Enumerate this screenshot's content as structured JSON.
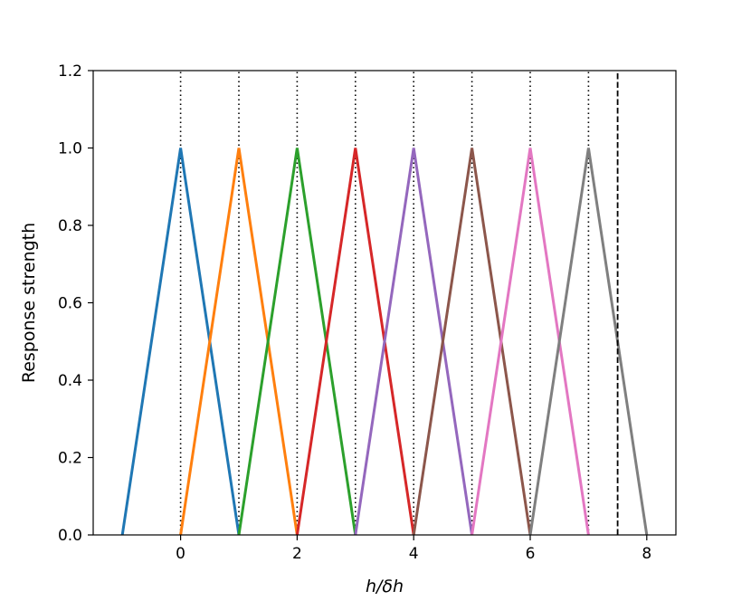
{
  "chart_data": {
    "type": "line",
    "title": "",
    "xlabel": "h/δh",
    "ylabel": "Response strength",
    "xlim": [
      -1.5,
      8.5
    ],
    "ylim": [
      0.0,
      1.2
    ],
    "xticks": [
      0,
      2,
      4,
      6,
      8
    ],
    "xtick_labels": [
      "0",
      "2",
      "4",
      "6",
      "8"
    ],
    "yticks": [
      0.0,
      0.2,
      0.4,
      0.6,
      0.8,
      1.0,
      1.2
    ],
    "ytick_labels": [
      "0.0",
      "0.2",
      "0.4",
      "0.6",
      "0.8",
      "1.0",
      "1.2"
    ],
    "grid": false,
    "legend": "none",
    "series": [
      {
        "color": "#1f77b4",
        "x": [
          -1,
          0,
          1
        ],
        "y": [
          0,
          1,
          0
        ]
      },
      {
        "color": "#ff7f0e",
        "x": [
          0,
          1,
          2
        ],
        "y": [
          0,
          1,
          0
        ]
      },
      {
        "color": "#2ca02c",
        "x": [
          1,
          2,
          3
        ],
        "y": [
          0,
          1,
          0
        ]
      },
      {
        "color": "#d62728",
        "x": [
          2,
          3,
          4
        ],
        "y": [
          0,
          1,
          0
        ]
      },
      {
        "color": "#9467bd",
        "x": [
          3,
          4,
          5
        ],
        "y": [
          0,
          1,
          0
        ]
      },
      {
        "color": "#8c564b",
        "x": [
          4,
          5,
          6
        ],
        "y": [
          0,
          1,
          0
        ]
      },
      {
        "color": "#e377c2",
        "x": [
          5,
          6,
          7
        ],
        "y": [
          0,
          1,
          0
        ]
      },
      {
        "color": "#7f7f7f",
        "x": [
          6,
          7,
          8
        ],
        "y": [
          0,
          1,
          0
        ]
      }
    ],
    "vlines_dotted": [
      0,
      1,
      2,
      3,
      4,
      5,
      6,
      7
    ],
    "vline_dashed": 7.5
  }
}
